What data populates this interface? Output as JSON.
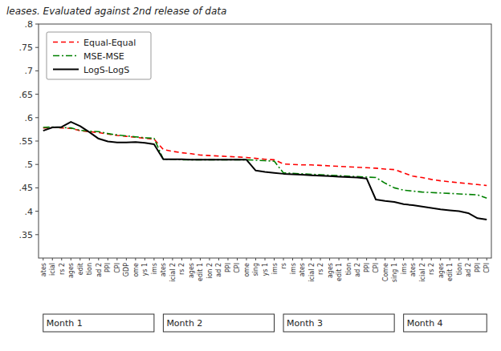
{
  "chart_data": {
    "type": "line",
    "subtitle": "leases.  Evaluated against 2nd release of data",
    "categories": [
      "ates",
      "icial",
      "rs 2",
      "ages",
      "edit",
      "tion",
      "ad 2",
      "PPI",
      "CPI",
      "GDP",
      "ome",
      "ys 1",
      "ims",
      "ates",
      "icial 2",
      "rs 2",
      "ages",
      "edit 1",
      "ion 2",
      "ad 2",
      "PPI",
      "CPI",
      "ome",
      "sing",
      "ys 1",
      "ims",
      "rs",
      "ims",
      "ates",
      "icial 2",
      "rs 2",
      "ages",
      "edit 1",
      "tion",
      "ad 2",
      "PPI",
      "CPI",
      "Come",
      "sing 1",
      "ims",
      "ates",
      "icial 2",
      "rs 2",
      "ages",
      "edit 1",
      "tion",
      "ad 2",
      "PPI",
      "CPI"
    ],
    "series": [
      {
        "name": "Equal-Equal",
        "color": "#ff0000",
        "line_style": "dashed",
        "values": [
          0.578,
          0.579,
          0.578,
          0.577,
          0.572,
          0.57,
          0.568,
          0.565,
          0.562,
          0.56,
          0.558,
          0.556,
          0.554,
          0.532,
          0.528,
          0.525,
          0.523,
          0.52,
          0.519,
          0.518,
          0.517,
          0.516,
          0.515,
          0.513,
          0.511,
          0.51,
          0.501,
          0.5,
          0.499,
          0.499,
          0.498,
          0.497,
          0.496,
          0.495,
          0.494,
          0.493,
          0.492,
          0.49,
          0.489,
          0.482,
          0.475,
          0.472,
          0.468,
          0.465,
          0.463,
          0.461,
          0.459,
          0.457,
          0.455
        ]
      },
      {
        "name": "MSE-MSE",
        "color": "#008000",
        "line_style": "dashdot",
        "values": [
          0.579,
          0.58,
          0.579,
          0.578,
          0.573,
          0.571,
          0.57,
          0.566,
          0.563,
          0.561,
          0.559,
          0.557,
          0.556,
          0.511,
          0.511,
          0.51,
          0.51,
          0.51,
          0.51,
          0.51,
          0.51,
          0.51,
          0.51,
          0.509,
          0.508,
          0.507,
          0.482,
          0.481,
          0.48,
          0.479,
          0.478,
          0.477,
          0.476,
          0.475,
          0.474,
          0.473,
          0.472,
          0.46,
          0.45,
          0.445,
          0.443,
          0.441,
          0.44,
          0.439,
          0.438,
          0.437,
          0.436,
          0.435,
          0.428
        ]
      },
      {
        "name": "LogS-LogS",
        "color": "#000000",
        "line_style": "solid",
        "values": [
          0.572,
          0.579,
          0.58,
          0.591,
          0.582,
          0.569,
          0.555,
          0.549,
          0.547,
          0.547,
          0.548,
          0.546,
          0.543,
          0.511,
          0.511,
          0.511,
          0.51,
          0.51,
          0.51,
          0.51,
          0.51,
          0.51,
          0.51,
          0.487,
          0.484,
          0.482,
          0.48,
          0.479,
          0.478,
          0.477,
          0.476,
          0.475,
          0.474,
          0.473,
          0.472,
          0.47,
          0.425,
          0.422,
          0.42,
          0.415,
          0.413,
          0.41,
          0.407,
          0.404,
          0.402,
          0.4,
          0.396,
          0.385,
          0.382
        ]
      }
    ],
    "ylim": [
      0.3,
      0.8
    ],
    "yticks": [
      {
        "value": 0.35,
        "label": ".35"
      },
      {
        "value": 0.4,
        "label": ".4"
      },
      {
        "value": 0.45,
        "label": ".45"
      },
      {
        "value": 0.5,
        "label": ".5"
      },
      {
        "value": 0.55,
        "label": ".55"
      },
      {
        "value": 0.6,
        "label": ".6"
      },
      {
        "value": 0.65,
        "label": ".65"
      },
      {
        "value": 0.7,
        "label": ".7"
      },
      {
        "value": 0.75,
        "label": ".75"
      },
      {
        "value": 0.8,
        "label": ".8"
      }
    ],
    "legend": "upper left",
    "annotations": [
      {
        "text": "Month 1",
        "start": 0,
        "end": 12
      },
      {
        "text": "Month 2",
        "start": 13,
        "end": 25
      },
      {
        "text": "Month 3",
        "start": 26,
        "end": 38
      },
      {
        "text": "Month 4",
        "start": 39,
        "end": 48
      }
    ]
  }
}
